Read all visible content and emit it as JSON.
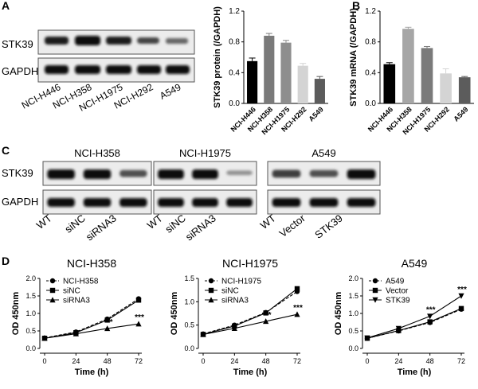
{
  "panels": {
    "A": "A",
    "B": "B",
    "C": "C",
    "D": "D"
  },
  "blot_a": {
    "rows": [
      "STK39",
      "GAPDH"
    ],
    "lanes": [
      "NCI-H446",
      "NCI-H358",
      "NCI-H1975",
      "NCI-H292",
      "A549"
    ]
  },
  "blot_c": {
    "rows": [
      "STK39",
      "GAPDH"
    ],
    "groups": [
      {
        "title": "NCI-H358",
        "lanes": [
          "WT",
          "siNC",
          "siRNA3"
        ]
      },
      {
        "title": "NCI-H1975",
        "lanes": [
          "WT",
          "siNC",
          "siRNA3"
        ]
      },
      {
        "title": "A549",
        "lanes": [
          "WT",
          "Vector",
          "STK39"
        ]
      }
    ]
  },
  "chart_data": [
    {
      "id": "A_bar",
      "type": "bar",
      "categories": [
        "NCI-H446",
        "NCI-H358",
        "NCI-H1975",
        "NCI-H292",
        "A549"
      ],
      "values": [
        0.55,
        0.88,
        0.79,
        0.49,
        0.32
      ],
      "errors": [
        0.04,
        0.03,
        0.03,
        0.03,
        0.03
      ],
      "colors": [
        "#000000",
        "#7a7a7a",
        "#8e8e8e",
        "#d4d4d4",
        "#5c5c5c"
      ],
      "ylabel": "STK39 protein (/GAPDH)",
      "ylim": [
        0,
        1.2
      ],
      "yticks": [
        "0.0",
        "0.4",
        "0.8",
        "1.2"
      ]
    },
    {
      "id": "B_bar",
      "type": "bar",
      "categories": [
        "NCI-H446",
        "NCI-H358",
        "NCI-H1975",
        "NCI-H292",
        "A549"
      ],
      "values": [
        0.51,
        0.97,
        0.72,
        0.39,
        0.34
      ],
      "errors": [
        0.02,
        0.02,
        0.02,
        0.06,
        0.01
      ],
      "colors": [
        "#000000",
        "#a6a6a6",
        "#7a7a7a",
        "#d4d4d4",
        "#5c5c5c"
      ],
      "ylabel": "STK39 mRNA (/GAPDH)",
      "ylim": [
        0,
        1.2
      ],
      "yticks": [
        "0.0",
        "0.4",
        "0.8",
        "1.2"
      ]
    },
    {
      "id": "D1",
      "type": "line",
      "title": "NCI-H358",
      "x": [
        0,
        24,
        48,
        72
      ],
      "xlabel": "Time (h)",
      "ylabel": "OD 450nm",
      "ylim": [
        0,
        2.0
      ],
      "yticks": [
        "0.0",
        "0.5",
        "1.0",
        "1.5",
        "2.0"
      ],
      "series": [
        {
          "name": "NCI-H358",
          "values": [
            0.3,
            0.47,
            0.84,
            1.42
          ],
          "marker": "circle",
          "dash": true
        },
        {
          "name": "siNC",
          "values": [
            0.29,
            0.45,
            0.81,
            1.38
          ],
          "marker": "square",
          "dash": false
        },
        {
          "name": "siRNA3",
          "values": [
            0.29,
            0.42,
            0.57,
            0.7
          ],
          "marker": "triangle",
          "dash": false
        }
      ],
      "annotations": [
        {
          "x": 48,
          "y": 0.57,
          "text": "***"
        },
        {
          "x": 72,
          "y": 0.7,
          "text": "***"
        }
      ]
    },
    {
      "id": "D2",
      "type": "line",
      "title": "NCI-H1975",
      "x": [
        0,
        24,
        48,
        72
      ],
      "xlabel": "Time (h)",
      "ylabel": "OD 450nm",
      "ylim": [
        0,
        1.5
      ],
      "yticks": [
        "0.0",
        "0.5",
        "1.0",
        "1.5"
      ],
      "series": [
        {
          "name": "NCI-H1975",
          "values": [
            0.31,
            0.5,
            0.77,
            1.22
          ],
          "marker": "circle",
          "dash": true
        },
        {
          "name": "siNC",
          "values": [
            0.3,
            0.48,
            0.76,
            1.28
          ],
          "marker": "square",
          "dash": false
        },
        {
          "name": "siRNA3",
          "values": [
            0.3,
            0.43,
            0.58,
            0.73
          ],
          "marker": "triangle",
          "dash": false
        }
      ],
      "annotations": [
        {
          "x": 48,
          "y": 0.58,
          "text": "***"
        },
        {
          "x": 72,
          "y": 0.73,
          "text": "***"
        }
      ]
    },
    {
      "id": "D3",
      "type": "line",
      "title": "A549",
      "x": [
        0,
        24,
        48,
        72
      ],
      "xlabel": "Time (h)",
      "ylabel": "OD 450nm",
      "ylim": [
        0,
        2.0
      ],
      "yticks": [
        "0.0",
        "0.5",
        "1.0",
        "1.5",
        "2.0"
      ],
      "series": [
        {
          "name": "A549",
          "values": [
            0.29,
            0.5,
            0.74,
            1.12
          ],
          "marker": "circle",
          "dash": true
        },
        {
          "name": "Vector",
          "values": [
            0.29,
            0.51,
            0.76,
            1.14
          ],
          "marker": "square",
          "dash": false
        },
        {
          "name": "STK39",
          "values": [
            0.3,
            0.57,
            0.92,
            1.5
          ],
          "marker": "triangle-down",
          "dash": false
        }
      ],
      "annotations": [
        {
          "x": 48,
          "y": 0.92,
          "text": "***"
        },
        {
          "x": 72,
          "y": 1.5,
          "text": "***"
        }
      ]
    }
  ]
}
